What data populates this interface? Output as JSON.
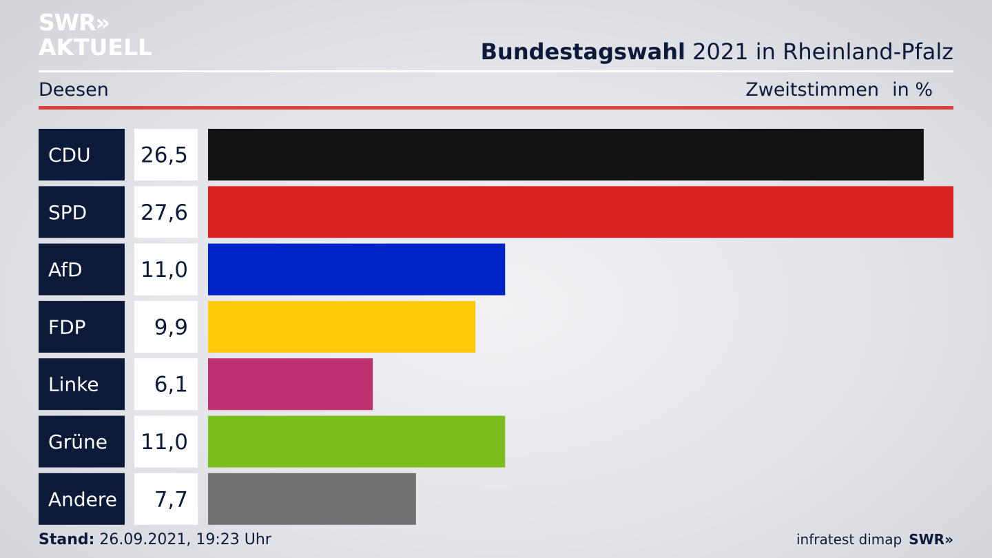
{
  "logo": {
    "line1": "SWR",
    "chevrons": "»",
    "line2": "AKTUELL"
  },
  "header": {
    "title_bold": "Bundestagswahl",
    "title_rest": " 2021 in Rheinland-Pfalz",
    "subtitle": "Deesen",
    "vote_type": "Zweitstimmen",
    "unit": "in %"
  },
  "chart_data": {
    "type": "bar",
    "orientation": "horizontal",
    "categories": [
      "CDU",
      "SPD",
      "AfD",
      "FDP",
      "Linke",
      "Grüne",
      "Andere"
    ],
    "values": [
      26.5,
      27.6,
      11.0,
      9.9,
      6.1,
      11.0,
      7.7
    ],
    "value_labels": [
      "26,5",
      "27,6",
      "11,0",
      "9,9",
      "6,1",
      "11,0",
      "7,7"
    ],
    "colors": [
      "#131313",
      "#d8201e",
      "#0023c8",
      "#fdcb0a",
      "#bf3171",
      "#7abe1e",
      "#727274"
    ],
    "xlim": [
      0,
      27.6
    ]
  },
  "footer": {
    "stand_label": "Stand:",
    "stand_value": " 26.09.2021, 19:23 Uhr",
    "source": "infratest dimap",
    "brand": "SWR»"
  }
}
